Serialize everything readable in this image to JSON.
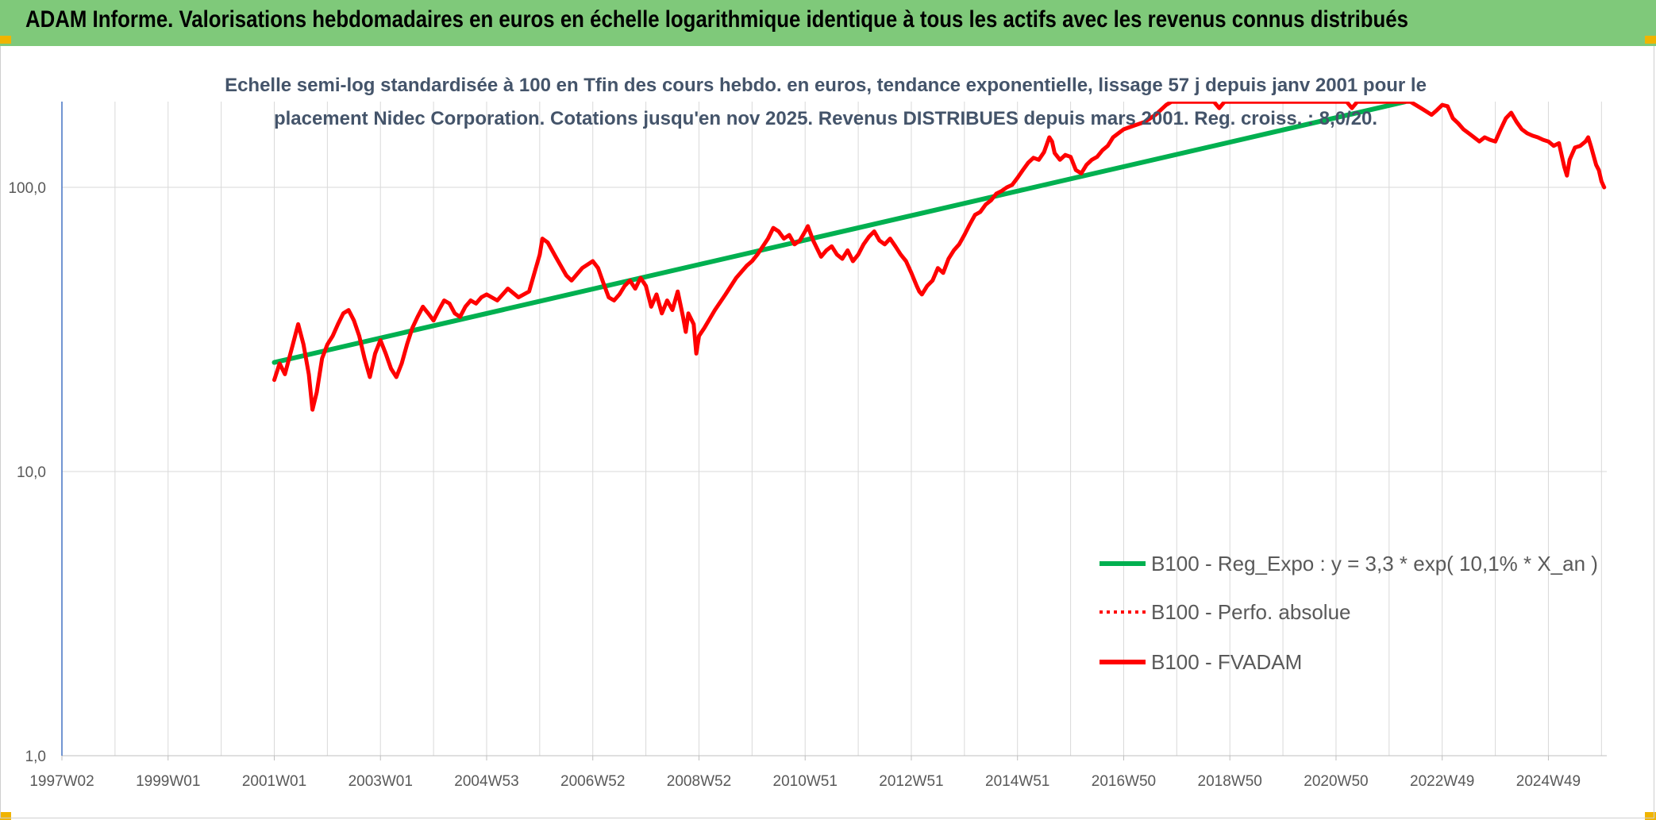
{
  "banner": {
    "title": "ADAM Informe. Valorisations hebdomadaires en euros en échelle logarithmique identique à tous les actifs avec les revenus connus distribués",
    "color": "#7fc97a"
  },
  "chart_data": {
    "type": "line",
    "title_lines": [
      "Echelle semi-log standardisée à 100 en Tfin des cours hebdo. en euros, tendance exponentielle, lissage 57 j depuis janv 2001 pour le",
      "placement Nidec Corporation. Cotations jusqu'en nov 2025. Revenus DISTRIBUES depuis mars 2001. Reg. croiss. : 8,0/20."
    ],
    "y_scale": "log",
    "ylim": [
      1,
      200
    ],
    "y_ticks": [
      {
        "value": 1,
        "label": "1,0"
      },
      {
        "value": 10,
        "label": "10,0"
      },
      {
        "value": 100,
        "label": "100,0"
      }
    ],
    "x_ticks": [
      {
        "t": 1997.0,
        "label": "1997W02"
      },
      {
        "t": 1999.0,
        "label": "1999W01"
      },
      {
        "t": 2001.0,
        "label": "2001W01"
      },
      {
        "t": 2003.0,
        "label": "2003W01"
      },
      {
        "t": 2005.0,
        "label": "2004W53"
      },
      {
        "t": 2007.0,
        "label": "2006W52"
      },
      {
        "t": 2009.0,
        "label": "2008W52"
      },
      {
        "t": 2011.0,
        "label": "2010W51"
      },
      {
        "t": 2013.0,
        "label": "2012W51"
      },
      {
        "t": 2015.0,
        "label": "2014W51"
      },
      {
        "t": 2017.0,
        "label": "2016W50"
      },
      {
        "t": 2019.0,
        "label": "2018W50"
      },
      {
        "t": 2021.0,
        "label": "2020W50"
      },
      {
        "t": 2023.0,
        "label": "2022W49"
      },
      {
        "t": 2025.0,
        "label": "2024W49"
      }
    ],
    "xlim": [
      1997.0,
      2026.1
    ],
    "grid": true,
    "legend_position": "bottom-right",
    "series": [
      {
        "name": "B100 - Reg_Expo : y = 3,3 * exp( 10,1% *  X_an )",
        "color": "#00b050",
        "style": "solid",
        "points": [
          [
            2001.0,
            24.2
          ],
          [
            2022.3,
            200.0
          ]
        ]
      },
      {
        "name": "B100 - Perfo. absolue",
        "color": "#ff0000",
        "style": "dotted",
        "points": []
      },
      {
        "name": "B100 - FVADAM",
        "color": "#ff0000",
        "style": "solid",
        "points": [
          [
            2001.0,
            21.0
          ],
          [
            2001.1,
            24.0
          ],
          [
            2001.2,
            22.0
          ],
          [
            2001.35,
            28.0
          ],
          [
            2001.45,
            33.0
          ],
          [
            2001.55,
            28.0
          ],
          [
            2001.65,
            22.0
          ],
          [
            2001.72,
            16.5
          ],
          [
            2001.8,
            19.0
          ],
          [
            2001.9,
            25.0
          ],
          [
            2002.0,
            28.0
          ],
          [
            2002.1,
            30.0
          ],
          [
            2002.2,
            33.0
          ],
          [
            2002.3,
            36.0
          ],
          [
            2002.4,
            37.0
          ],
          [
            2002.5,
            34.0
          ],
          [
            2002.6,
            30.0
          ],
          [
            2002.7,
            25.0
          ],
          [
            2002.8,
            21.5
          ],
          [
            2002.9,
            26.0
          ],
          [
            2003.0,
            29.0
          ],
          [
            2003.1,
            26.0
          ],
          [
            2003.2,
            23.0
          ],
          [
            2003.3,
            21.5
          ],
          [
            2003.4,
            24.0
          ],
          [
            2003.5,
            28.0
          ],
          [
            2003.6,
            32.0
          ],
          [
            2003.7,
            35.0
          ],
          [
            2003.8,
            38.0
          ],
          [
            2003.9,
            36.0
          ],
          [
            2004.0,
            34.0
          ],
          [
            2004.1,
            37.0
          ],
          [
            2004.2,
            40.0
          ],
          [
            2004.3,
            39.0
          ],
          [
            2004.4,
            36.0
          ],
          [
            2004.5,
            35.0
          ],
          [
            2004.6,
            38.0
          ],
          [
            2004.7,
            40.0
          ],
          [
            2004.8,
            39.0
          ],
          [
            2004.9,
            41.0
          ],
          [
            2005.0,
            42.0
          ],
          [
            2005.2,
            40.0
          ],
          [
            2005.4,
            44.0
          ],
          [
            2005.6,
            41.0
          ],
          [
            2005.8,
            43.0
          ],
          [
            2005.9,
            50.0
          ],
          [
            2006.0,
            58.0
          ],
          [
            2006.05,
            66.0
          ],
          [
            2006.15,
            64.0
          ],
          [
            2006.3,
            57.0
          ],
          [
            2006.5,
            49.0
          ],
          [
            2006.6,
            47.0
          ],
          [
            2006.8,
            52.0
          ],
          [
            2007.0,
            55.0
          ],
          [
            2007.1,
            52.0
          ],
          [
            2007.2,
            46.0
          ],
          [
            2007.3,
            41.0
          ],
          [
            2007.4,
            40.0
          ],
          [
            2007.5,
            42.0
          ],
          [
            2007.6,
            45.0
          ],
          [
            2007.7,
            47.0
          ],
          [
            2007.8,
            44.0
          ],
          [
            2007.9,
            48.0
          ],
          [
            2008.0,
            45.0
          ],
          [
            2008.1,
            38.0
          ],
          [
            2008.2,
            42.0
          ],
          [
            2008.3,
            36.0
          ],
          [
            2008.4,
            40.0
          ],
          [
            2008.5,
            37.0
          ],
          [
            2008.6,
            43.0
          ],
          [
            2008.7,
            35.0
          ],
          [
            2008.75,
            31.0
          ],
          [
            2008.8,
            36.0
          ],
          [
            2008.9,
            33.0
          ],
          [
            2008.95,
            26.0
          ],
          [
            2009.0,
            30.0
          ],
          [
            2009.1,
            32.0
          ],
          [
            2009.3,
            37.0
          ],
          [
            2009.5,
            42.0
          ],
          [
            2009.7,
            48.0
          ],
          [
            2009.9,
            53.0
          ],
          [
            2010.0,
            55.0
          ],
          [
            2010.1,
            58.0
          ],
          [
            2010.3,
            66.0
          ],
          [
            2010.4,
            72.0
          ],
          [
            2010.5,
            70.0
          ],
          [
            2010.6,
            66.0
          ],
          [
            2010.7,
            68.0
          ],
          [
            2010.8,
            63.0
          ],
          [
            2010.9,
            65.0
          ],
          [
            2011.0,
            70.0
          ],
          [
            2011.05,
            73.0
          ],
          [
            2011.15,
            65.0
          ],
          [
            2011.3,
            57.0
          ],
          [
            2011.4,
            60.0
          ],
          [
            2011.5,
            62.0
          ],
          [
            2011.6,
            58.0
          ],
          [
            2011.7,
            56.0
          ],
          [
            2011.8,
            60.0
          ],
          [
            2011.9,
            55.0
          ],
          [
            2012.0,
            58.0
          ],
          [
            2012.1,
            63.0
          ],
          [
            2012.2,
            67.0
          ],
          [
            2012.3,
            70.0
          ],
          [
            2012.4,
            65.0
          ],
          [
            2012.5,
            63.0
          ],
          [
            2012.6,
            66.0
          ],
          [
            2012.7,
            62.0
          ],
          [
            2012.8,
            58.0
          ],
          [
            2012.9,
            55.0
          ],
          [
            2013.0,
            50.0
          ],
          [
            2013.1,
            45.0
          ],
          [
            2013.15,
            43.0
          ],
          [
            2013.2,
            42.0
          ],
          [
            2013.3,
            45.0
          ],
          [
            2013.4,
            47.0
          ],
          [
            2013.5,
            52.0
          ],
          [
            2013.6,
            50.0
          ],
          [
            2013.7,
            56.0
          ],
          [
            2013.8,
            60.0
          ],
          [
            2013.9,
            63.0
          ],
          [
            2014.0,
            68.0
          ],
          [
            2014.1,
            74.0
          ],
          [
            2014.2,
            80.0
          ],
          [
            2014.3,
            82.0
          ],
          [
            2014.4,
            87.0
          ],
          [
            2014.5,
            90.0
          ],
          [
            2014.6,
            95.0
          ],
          [
            2014.7,
            97.0
          ],
          [
            2014.8,
            100.0
          ],
          [
            2014.9,
            102.0
          ],
          [
            2015.0,
            108.0
          ],
          [
            2015.1,
            115.0
          ],
          [
            2015.2,
            122.0
          ],
          [
            2015.3,
            127.0
          ],
          [
            2015.4,
            125.0
          ],
          [
            2015.5,
            133.0
          ],
          [
            2015.6,
            150.0
          ],
          [
            2015.65,
            145.0
          ],
          [
            2015.7,
            132.0
          ],
          [
            2015.8,
            125.0
          ],
          [
            2015.9,
            130.0
          ],
          [
            2016.0,
            128.0
          ],
          [
            2016.1,
            115.0
          ],
          [
            2016.2,
            112.0
          ],
          [
            2016.3,
            120.0
          ],
          [
            2016.4,
            125.0
          ],
          [
            2016.5,
            128.0
          ],
          [
            2016.6,
            135.0
          ],
          [
            2016.7,
            140.0
          ],
          [
            2016.8,
            150.0
          ],
          [
            2016.9,
            155.0
          ],
          [
            2017.0,
            160.0
          ],
          [
            2017.2,
            165.0
          ],
          [
            2017.4,
            170.0
          ],
          [
            2017.6,
            180.0
          ],
          [
            2017.8,
            195.0
          ],
          [
            2017.9,
            200.0
          ],
          [
            2018.7,
            200.0
          ],
          [
            2018.8,
            190.0
          ],
          [
            2018.9,
            200.0
          ],
          [
            2021.2,
            200.0
          ],
          [
            2021.3,
            190.0
          ],
          [
            2021.4,
            200.0
          ],
          [
            2022.4,
            200.0
          ],
          [
            2022.5,
            195.0
          ],
          [
            2022.6,
            190.0
          ],
          [
            2022.7,
            185.0
          ],
          [
            2022.8,
            180.0
          ],
          [
            2022.9,
            187.0
          ],
          [
            2023.0,
            195.0
          ],
          [
            2023.1,
            193.0
          ],
          [
            2023.2,
            175.0
          ],
          [
            2023.3,
            168.0
          ],
          [
            2023.4,
            160.0
          ],
          [
            2023.5,
            155.0
          ],
          [
            2023.6,
            150.0
          ],
          [
            2023.7,
            145.0
          ],
          [
            2023.8,
            150.0
          ],
          [
            2023.9,
            147.0
          ],
          [
            2024.0,
            145.0
          ],
          [
            2024.1,
            160.0
          ],
          [
            2024.2,
            175.0
          ],
          [
            2024.3,
            183.0
          ],
          [
            2024.4,
            170.0
          ],
          [
            2024.5,
            160.0
          ],
          [
            2024.6,
            155.0
          ],
          [
            2024.7,
            152.0
          ],
          [
            2024.8,
            150.0
          ],
          [
            2024.9,
            147.0
          ],
          [
            2025.0,
            145.0
          ],
          [
            2025.1,
            140.0
          ],
          [
            2025.2,
            143.0
          ],
          [
            2025.3,
            118.0
          ],
          [
            2025.35,
            110.0
          ],
          [
            2025.4,
            125.0
          ],
          [
            2025.5,
            138.0
          ],
          [
            2025.6,
            140.0
          ],
          [
            2025.7,
            145.0
          ],
          [
            2025.75,
            150.0
          ],
          [
            2025.8,
            140.0
          ],
          [
            2025.9,
            120.0
          ],
          [
            2025.95,
            115.0
          ],
          [
            2026.0,
            105.0
          ],
          [
            2026.05,
            100.0
          ]
        ]
      }
    ]
  }
}
